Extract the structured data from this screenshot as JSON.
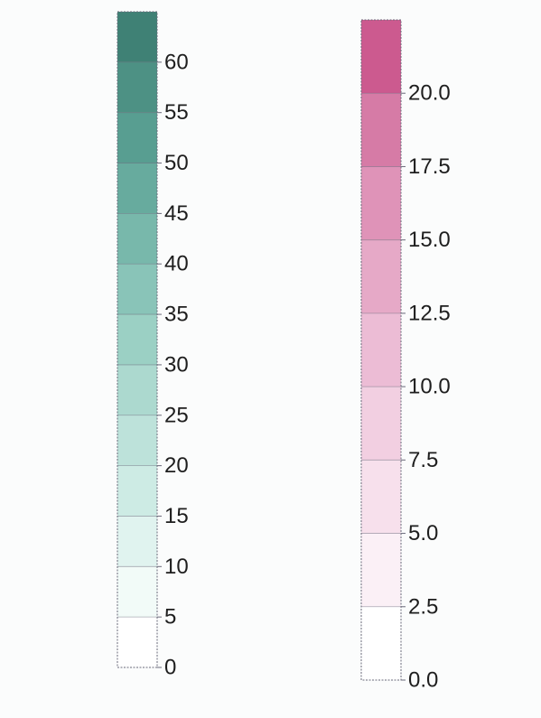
{
  "chart_data": [
    {
      "type": "colorbar",
      "title": "",
      "ylim": [
        0,
        65
      ],
      "ticks": [
        0,
        5,
        10,
        15,
        20,
        25,
        30,
        35,
        40,
        45,
        50,
        55,
        60
      ],
      "tick_labels": [
        "0",
        "5",
        "10",
        "15",
        "20",
        "25",
        "30",
        "35",
        "40",
        "45",
        "50",
        "55",
        "60"
      ],
      "bins": [
        {
          "from": 0,
          "to": 5,
          "color": "#ffffff"
        },
        {
          "from": 5,
          "to": 10,
          "color": "#f2fbf8"
        },
        {
          "from": 10,
          "to": 15,
          "color": "#e0f3ef"
        },
        {
          "from": 15,
          "to": 20,
          "color": "#cdebe4"
        },
        {
          "from": 20,
          "to": 25,
          "color": "#bde2da"
        },
        {
          "from": 25,
          "to": 30,
          "color": "#acd9cf"
        },
        {
          "from": 30,
          "to": 35,
          "color": "#9bd0c4"
        },
        {
          "from": 35,
          "to": 40,
          "color": "#89c4b8"
        },
        {
          "from": 40,
          "to": 45,
          "color": "#78b8ab"
        },
        {
          "from": 45,
          "to": 50,
          "color": "#67ab9e"
        },
        {
          "from": 50,
          "to": 55,
          "color": "#589e91"
        },
        {
          "from": 55,
          "to": 60,
          "color": "#4d9184"
        },
        {
          "from": 60,
          "to": 65,
          "color": "#3f8175"
        }
      ]
    },
    {
      "type": "colorbar",
      "title": "",
      "ylim": [
        0,
        22.5
      ],
      "ticks": [
        0,
        2.5,
        5,
        7.5,
        10,
        12.5,
        15,
        17.5,
        20
      ],
      "tick_labels": [
        "0.0",
        "2.5",
        "5.0",
        "7.5",
        "10.0",
        "12.5",
        "15.0",
        "17.5",
        "20.0"
      ],
      "bins": [
        {
          "from": 0,
          "to": 2.5,
          "color": "#ffffff"
        },
        {
          "from": 2.5,
          "to": 5,
          "color": "#fbf0f6"
        },
        {
          "from": 5,
          "to": 7.5,
          "color": "#f7e0ec"
        },
        {
          "from": 7.5,
          "to": 10,
          "color": "#f2cfe1"
        },
        {
          "from": 10,
          "to": 12.5,
          "color": "#ecbcd5"
        },
        {
          "from": 12.5,
          "to": 15,
          "color": "#e6a9c7"
        },
        {
          "from": 15,
          "to": 17.5,
          "color": "#df93b8"
        },
        {
          "from": 17.5,
          "to": 20,
          "color": "#d67ba6"
        },
        {
          "from": 20,
          "to": 22.5,
          "color": "#cc5a8f"
        }
      ]
    }
  ],
  "colors": {
    "tick_text": "#1e1e1e",
    "bar_outline": "#6a6a7a"
  }
}
